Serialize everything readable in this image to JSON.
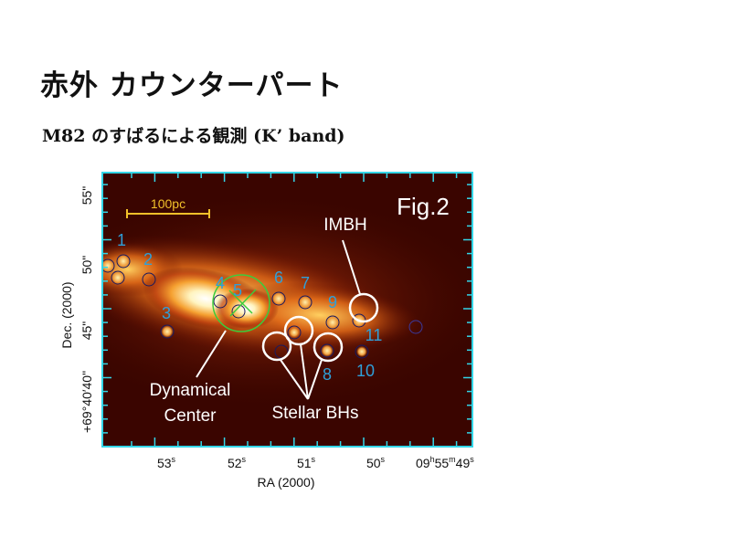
{
  "slide": {
    "title": "赤外 カウンターパート",
    "subtitle": "M82 のすばるによる観測 (K’ band)"
  },
  "figure": {
    "fig_label": "Fig.2",
    "scale_bar_label": "100pc",
    "annotations": {
      "imbh": "IMBH",
      "dynamical_center_line1": "Dynamical",
      "dynamical_center_line2": "Center",
      "stellar_bhs": "Stellar BHs"
    },
    "source_numbers": [
      "1",
      "2",
      "3",
      "4",
      "5",
      "6",
      "7",
      "8",
      "9",
      "10",
      "11"
    ],
    "y_axis": {
      "label": "Dec. (2000)",
      "ticks": [
        "55\"",
        "50\"",
        "45\"",
        "+69°40′40\""
      ]
    },
    "x_axis": {
      "label": "RA (2000)",
      "ticks": [
        {
          "base": "53",
          "sup": "s"
        },
        {
          "base": "52",
          "sup": "s"
        },
        {
          "base": "51",
          "sup": "s"
        },
        {
          "base": "50",
          "sup": "s"
        },
        {
          "base": "09",
          "sup": "h",
          "base2": "55",
          "sup2": "m",
          "base3": "49",
          "sup3": "s"
        }
      ]
    },
    "colors": {
      "frame": "#33d6e8",
      "source_label": "#2f9fd8",
      "scale_bar": "#f2c02a",
      "dynamical_center": "#3ccc3c"
    }
  }
}
